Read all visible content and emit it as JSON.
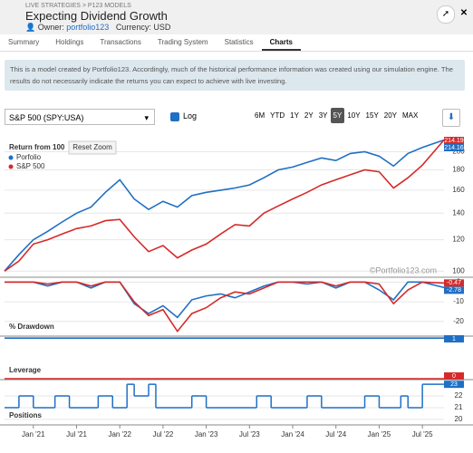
{
  "header": {
    "breadcrumb": "LIVE STRATEGIES > P123 MODELS",
    "title": "Expecting Dividend Growth",
    "owner_label": "Owner:",
    "owner": "portfolio123",
    "currency": "Currency: USD"
  },
  "tabs": [
    "Summary",
    "Holdings",
    "Transactions",
    "Trading System",
    "Statistics",
    "Charts"
  ],
  "active_tab": "Charts",
  "notice": "This is a model created by Portfolio123. Accordingly, much of the historical performance information was created using our simulation engine. The results do not necessarily indicate the returns you can expect to achieve with live investing.",
  "controls": {
    "benchmark": "S&P 500 (SPY:USA)",
    "log_label": "Log",
    "ranges": [
      "6M",
      "YTD",
      "1Y",
      "2Y",
      "3Y",
      "5Y",
      "10Y",
      "15Y",
      "20Y",
      "MAX"
    ],
    "active_range": "5Y"
  },
  "chart_data": [
    {
      "type": "line",
      "title": "Return from 100",
      "button": "Reset Zoom",
      "watermark": "©Portfolio123.com",
      "log": true,
      "grid": true,
      "xlim": [
        "2020-09",
        "2025-10"
      ],
      "ylim": [
        97,
        217
      ],
      "yticks": [
        100,
        120,
        140,
        160,
        180,
        200
      ],
      "x": [
        "2020-09",
        "2020-11",
        "2021-01",
        "2021-03",
        "2021-05",
        "2021-07",
        "2021-09",
        "2021-11",
        "2022-01",
        "2022-03",
        "2022-05",
        "2022-07",
        "2022-09",
        "2022-11",
        "2023-01",
        "2023-03",
        "2023-05",
        "2023-07",
        "2023-09",
        "2023-11",
        "2024-01",
        "2024-03",
        "2024-05",
        "2024-07",
        "2024-09",
        "2024-11",
        "2025-01",
        "2025-03",
        "2025-05",
        "2025-07",
        "2025-10"
      ],
      "series": [
        {
          "name": "Porfolio",
          "color": "#1f6fc5",
          "last_value_label": "214.16",
          "values": [
            100,
            110,
            120,
            126,
            133,
            140,
            145,
            158,
            170,
            152,
            143,
            150,
            145,
            155,
            158,
            160,
            162,
            165,
            172,
            180,
            183,
            188,
            193,
            190,
            198,
            200,
            195,
            184,
            198,
            205,
            214.16
          ]
        },
        {
          "name": "S&P 500",
          "color": "#d62a2a",
          "last_value_label": "214.19",
          "values": [
            100,
            106,
            117,
            120,
            124,
            128,
            130,
            134,
            135,
            122,
            112,
            116,
            108,
            113,
            117,
            124,
            131,
            130,
            140,
            146,
            152,
            158,
            165,
            170,
            175,
            180,
            178,
            162,
            172,
            185,
            214.19
          ]
        }
      ]
    },
    {
      "type": "line",
      "title": "% Drawdown",
      "grid": true,
      "xlim": [
        "2020-09",
        "2025-10"
      ],
      "ylim": [
        -27,
        2
      ],
      "yticks": [
        0,
        -10,
        -20
      ],
      "x": [
        "2020-09",
        "2020-11",
        "2021-01",
        "2021-03",
        "2021-05",
        "2021-07",
        "2021-09",
        "2021-11",
        "2022-01",
        "2022-03",
        "2022-05",
        "2022-07",
        "2022-09",
        "2022-11",
        "2023-01",
        "2023-03",
        "2023-05",
        "2023-07",
        "2023-09",
        "2023-11",
        "2024-01",
        "2024-03",
        "2024-05",
        "2024-07",
        "2024-09",
        "2024-11",
        "2025-01",
        "2025-03",
        "2025-05",
        "2025-07",
        "2025-10"
      ],
      "series": [
        {
          "name": "Porfolio",
          "color": "#1f6fc5",
          "last_value_label": "-2.78",
          "values": [
            0,
            0,
            0,
            -2,
            0,
            0,
            -3,
            0,
            0,
            -11,
            -16,
            -12,
            -18,
            -9,
            -7,
            -6,
            -8,
            -5,
            -2,
            0,
            0,
            -1,
            0,
            -3,
            0,
            0,
            -4,
            -9,
            0,
            0,
            -2.78
          ]
        },
        {
          "name": "S&P 500",
          "color": "#d62a2a",
          "last_value_label": "-0.47",
          "values": [
            0,
            0,
            0,
            -1,
            0,
            0,
            -2,
            0,
            0,
            -10,
            -17,
            -14,
            -25,
            -16,
            -13,
            -8,
            -5,
            -6,
            -3,
            0,
            0,
            0,
            0,
            -2,
            0,
            0,
            -1,
            -11,
            -4,
            0,
            -0.47
          ]
        }
      ]
    },
    {
      "type": "line",
      "title": "Leverage",
      "xlim": [
        "2020-09",
        "2025-10"
      ],
      "ylim": [
        0,
        1.05
      ],
      "x": [
        "2020-09",
        "2025-10"
      ],
      "series": [
        {
          "name": "Porfolio",
          "color": "#1f6fc5",
          "last_value_label": "1",
          "values": [
            1,
            1
          ]
        },
        {
          "name": "S&P 500",
          "color": "#d62a2a",
          "last_value_label": "0",
          "values": [
            0,
            0
          ]
        }
      ]
    },
    {
      "type": "step",
      "title": "Positions",
      "grid": true,
      "xlim": [
        "2020-09",
        "2025-10"
      ],
      "ylim": [
        19.6,
        23.4
      ],
      "yticks": [
        20,
        21,
        22
      ],
      "xticks": [
        {
          "value": "2021-01",
          "label": "Jan '21"
        },
        {
          "value": "2021-07",
          "label": "Jul '21"
        },
        {
          "value": "2022-01",
          "label": "Jan '22"
        },
        {
          "value": "2022-07",
          "label": "Jul '22"
        },
        {
          "value": "2023-01",
          "label": "Jan '23"
        },
        {
          "value": "2023-07",
          "label": "Jul '23"
        },
        {
          "value": "2024-01",
          "label": "Jan '24"
        },
        {
          "value": "2024-07",
          "label": "Jul '24"
        },
        {
          "value": "2025-01",
          "label": "Jan '25"
        },
        {
          "value": "2025-07",
          "label": "Jul '25"
        }
      ],
      "x": [
        "2020-09",
        "2020-11",
        "2021-01",
        "2021-04",
        "2021-06",
        "2021-10",
        "2021-12",
        "2022-02",
        "2022-03",
        "2022-05",
        "2022-06",
        "2022-11",
        "2023-01",
        "2023-08",
        "2023-10",
        "2024-03",
        "2024-05",
        "2024-11",
        "2025-01",
        "2025-04",
        "2025-05",
        "2025-07",
        "2025-10"
      ],
      "series": [
        {
          "name": "Porfolio",
          "color": "#1f6fc5",
          "last_value_label": "23",
          "values": [
            21,
            22,
            21,
            22,
            21,
            22,
            21,
            23,
            22,
            23,
            21,
            22,
            21,
            22,
            21,
            22,
            21,
            22,
            21,
            22,
            21,
            23,
            23
          ]
        }
      ]
    }
  ]
}
